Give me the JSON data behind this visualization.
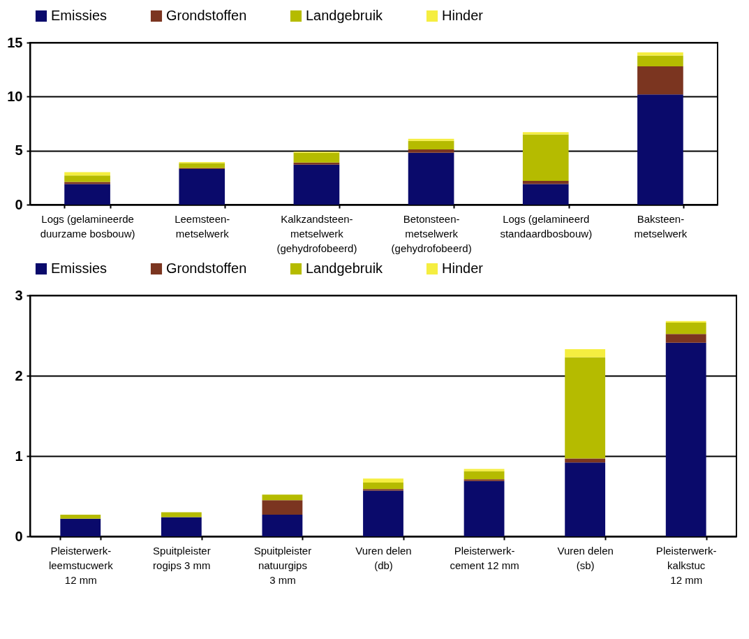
{
  "chart_data": [
    {
      "type": "bar",
      "stacked": true,
      "categories": [
        "Logs (gelamineerde duurzame bosbouw)",
        "Leemsteen-metselwerk",
        "Kalkzandsteen-metselwerk (gehydrofobeerd)",
        "Betonsteen-metselwerk (gehydrofobeerd)",
        "Logs (gelamineerd standaardbosbouw)",
        "Baksteen-metselwerk"
      ],
      "series": [
        {
          "name": "Emissies",
          "color": "#0a0a6b",
          "values": [
            1.9,
            3.3,
            3.7,
            4.8,
            1.9,
            10.2
          ]
        },
        {
          "name": "Grondstoffen",
          "color": "#7b3520",
          "values": [
            0.2,
            0.1,
            0.2,
            0.3,
            0.3,
            2.6
          ]
        },
        {
          "name": "Landgebruik",
          "color": "#b5bb00",
          "values": [
            0.6,
            0.45,
            0.9,
            0.8,
            4.3,
            1.0
          ]
        },
        {
          "name": "Hinder",
          "color": "#f5ee40",
          "values": [
            0.3,
            0.1,
            0.1,
            0.2,
            0.2,
            0.3
          ]
        }
      ],
      "ylim": [
        0,
        15
      ],
      "yticks": [
        0,
        5,
        10,
        15
      ],
      "grid": "y",
      "legend": "top"
    },
    {
      "type": "bar",
      "stacked": true,
      "categories": [
        "Pleisterwerk-leemstucwerk 12 mm",
        "Spuitpleister rogips 3 mm",
        "Spuitpleister natuurgips 3 mm",
        "Vuren delen (db)",
        "Pleisterwerk-cement 12 mm",
        "Vuren delen (sb)",
        "Pleisterwerk-kalkstuc 12 mm"
      ],
      "series": [
        {
          "name": "Emissies",
          "color": "#0a0a6b",
          "values": [
            0.22,
            0.24,
            0.27,
            0.57,
            0.69,
            0.92,
            2.41
          ]
        },
        {
          "name": "Grondstoffen",
          "color": "#7b3520",
          "values": [
            0,
            0,
            0.18,
            0.02,
            0.02,
            0.05,
            0.11
          ]
        },
        {
          "name": "Landgebruik",
          "color": "#b5bb00",
          "values": [
            0.05,
            0.06,
            0.07,
            0.08,
            0.1,
            1.26,
            0.14
          ]
        },
        {
          "name": "Hinder",
          "color": "#f5ee40",
          "values": [
            0,
            0,
            0,
            0.05,
            0.03,
            0.1,
            0.02
          ]
        }
      ],
      "ylim": [
        0,
        3
      ],
      "yticks": [
        0,
        1,
        2,
        3
      ],
      "grid": "y",
      "legend": "top"
    }
  ]
}
